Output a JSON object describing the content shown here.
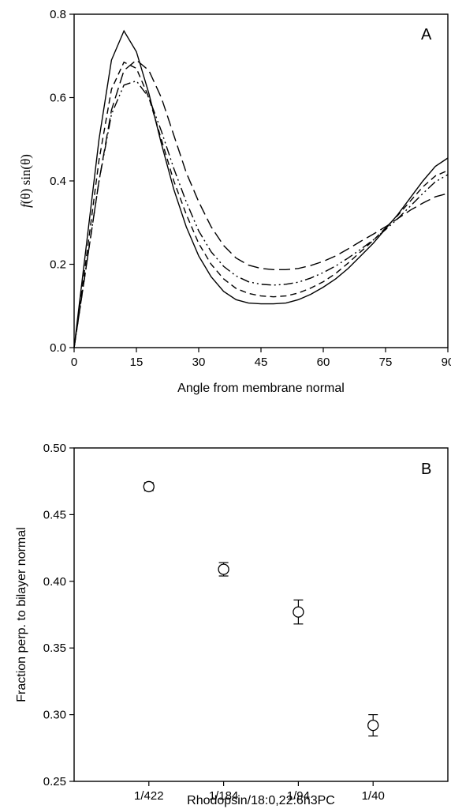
{
  "chart_data": [
    {
      "type": "line",
      "panel_label": "A",
      "xlabel": "Angle from membrane normal",
      "ylabel_prefix": "f",
      "ylabel_suffix": "(θ) sin(θ)",
      "xlim": [
        0,
        90
      ],
      "ylim": [
        0,
        0.8
      ],
      "x_ticks": [
        0,
        15,
        30,
        45,
        60,
        75,
        90
      ],
      "x_tick_labels": [
        "0",
        "15",
        "30",
        "45",
        "60",
        "75",
        "90"
      ],
      "y_ticks": [
        0,
        0.2,
        0.4,
        0.6,
        0.8
      ],
      "y_tick_labels": [
        "0.0",
        "0.2",
        "0.4",
        "0.6",
        "0.8"
      ],
      "grid": false,
      "series": [
        {
          "line_style": "solid",
          "x": [
            0,
            3,
            6,
            9,
            12,
            15,
            18,
            21,
            24,
            27,
            30,
            33,
            36,
            39,
            42,
            45,
            48,
            51,
            54,
            57,
            60,
            63,
            66,
            69,
            72,
            75,
            78,
            81,
            84,
            87,
            90
          ],
          "y": [
            0,
            0.25,
            0.5,
            0.69,
            0.76,
            0.71,
            0.61,
            0.49,
            0.38,
            0.29,
            0.22,
            0.17,
            0.135,
            0.115,
            0.107,
            0.105,
            0.105,
            0.107,
            0.115,
            0.128,
            0.145,
            0.165,
            0.19,
            0.22,
            0.25,
            0.285,
            0.32,
            0.36,
            0.4,
            0.435,
            0.455
          ]
        },
        {
          "line_style": "long-dash",
          "x": [
            0,
            3,
            6,
            9,
            12,
            15,
            18,
            21,
            24,
            27,
            30,
            33,
            36,
            39,
            42,
            45,
            48,
            51,
            54,
            57,
            60,
            63,
            66,
            69,
            72,
            75,
            78,
            81,
            84,
            87,
            90
          ],
          "y": [
            0,
            0.2,
            0.4,
            0.57,
            0.665,
            0.69,
            0.665,
            0.6,
            0.51,
            0.42,
            0.35,
            0.29,
            0.245,
            0.215,
            0.198,
            0.19,
            0.187,
            0.187,
            0.19,
            0.197,
            0.207,
            0.22,
            0.237,
            0.255,
            0.272,
            0.29,
            0.31,
            0.33,
            0.347,
            0.362,
            0.37
          ]
        },
        {
          "line_style": "dash-dot-dot",
          "x": [
            0,
            3,
            6,
            9,
            12,
            15,
            18,
            21,
            24,
            27,
            30,
            33,
            36,
            39,
            42,
            45,
            48,
            51,
            54,
            57,
            60,
            63,
            66,
            69,
            72,
            75,
            78,
            81,
            84,
            87,
            90
          ],
          "y": [
            0,
            0.2,
            0.4,
            0.56,
            0.63,
            0.64,
            0.6,
            0.52,
            0.43,
            0.35,
            0.28,
            0.23,
            0.195,
            0.172,
            0.158,
            0.152,
            0.15,
            0.152,
            0.157,
            0.167,
            0.18,
            0.196,
            0.215,
            0.236,
            0.258,
            0.283,
            0.31,
            0.34,
            0.37,
            0.398,
            0.415
          ]
        },
        {
          "line_style": "dash",
          "x": [
            0,
            3,
            6,
            9,
            12,
            15,
            18,
            21,
            24,
            27,
            30,
            33,
            36,
            39,
            42,
            45,
            48,
            51,
            54,
            57,
            60,
            63,
            66,
            69,
            72,
            75,
            78,
            81,
            84,
            87,
            90
          ],
          "y": [
            0,
            0.22,
            0.45,
            0.62,
            0.685,
            0.67,
            0.6,
            0.5,
            0.4,
            0.32,
            0.25,
            0.2,
            0.165,
            0.142,
            0.13,
            0.124,
            0.122,
            0.124,
            0.131,
            0.143,
            0.158,
            0.178,
            0.203,
            0.23,
            0.257,
            0.287,
            0.318,
            0.352,
            0.386,
            0.412,
            0.425
          ]
        }
      ]
    },
    {
      "type": "scatter",
      "panel_label": "B",
      "xlabel": "Rhodopsin/18:0,22:6n3PC",
      "ylabel": "Fraction perp. to bilayer normal",
      "categories": [
        "1/422",
        "1/184",
        "1/94",
        "1/40"
      ],
      "values": [
        0.471,
        0.409,
        0.377,
        0.292
      ],
      "errors": [
        0.003,
        0.005,
        0.009,
        0.008
      ],
      "ylim": [
        0.25,
        0.5
      ],
      "y_ticks": [
        0.25,
        0.3,
        0.35,
        0.4,
        0.45,
        0.5
      ],
      "y_tick_labels": [
        "0.25",
        "0.30",
        "0.35",
        "0.40",
        "0.45",
        "0.50"
      ],
      "marker": "open-circle",
      "grid": false
    }
  ]
}
